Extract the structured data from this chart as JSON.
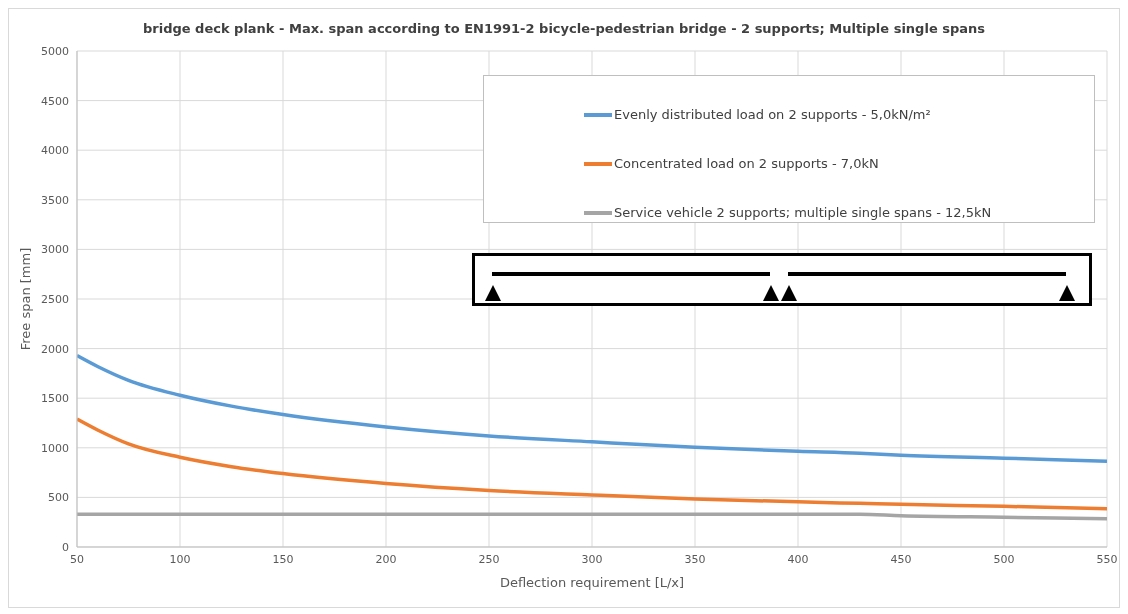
{
  "chart_data": {
    "type": "line",
    "title": "bridge deck plank  - Max. span according to EN1991-2 bicycle-pedestrian bridge - 2 supports; Multiple single spans",
    "xlabel": "Deflection requirement  [L/x]",
    "ylabel": "Free span [mm]",
    "x": [
      50,
      60,
      75,
      100,
      125,
      150,
      200,
      250,
      300,
      350,
      400,
      430,
      450,
      500,
      550
    ],
    "series": [
      {
        "name": "Evenly distributed load on 2 supports - 5,0kN/m²",
        "color": "#5b9bd5",
        "values": [
          1930,
          1820,
          1680,
          1530,
          1420,
          1335,
          1210,
          1120,
          1060,
          1005,
          965,
          945,
          925,
          895,
          865
        ]
      },
      {
        "name": "Concentrated load on 2 supports - 7,0kN",
        "color": "#ed7d31",
        "values": [
          1290,
          1180,
          1040,
          905,
          810,
          740,
          640,
          570,
          525,
          485,
          455,
          440,
          430,
          410,
          385
        ]
      },
      {
        "name": "Service vehicle 2 supports; multiple single spans - 12,5kN",
        "color": "#a5a5a5",
        "values": [
          330,
          330,
          330,
          330,
          330,
          330,
          330,
          330,
          330,
          330,
          330,
          330,
          315,
          300,
          285
        ]
      }
    ],
    "xlim": [
      50,
      550
    ],
    "xticks": [
      50,
      100,
      150,
      200,
      250,
      300,
      350,
      400,
      450,
      500,
      550
    ],
    "ylim": [
      0,
      5000
    ],
    "yticks": [
      0,
      500,
      1000,
      1500,
      2000,
      2500,
      3000,
      3500,
      4000,
      4500,
      5000
    ],
    "grid": true,
    "legend": "top right",
    "marker": "none",
    "line_style": "solid"
  }
}
